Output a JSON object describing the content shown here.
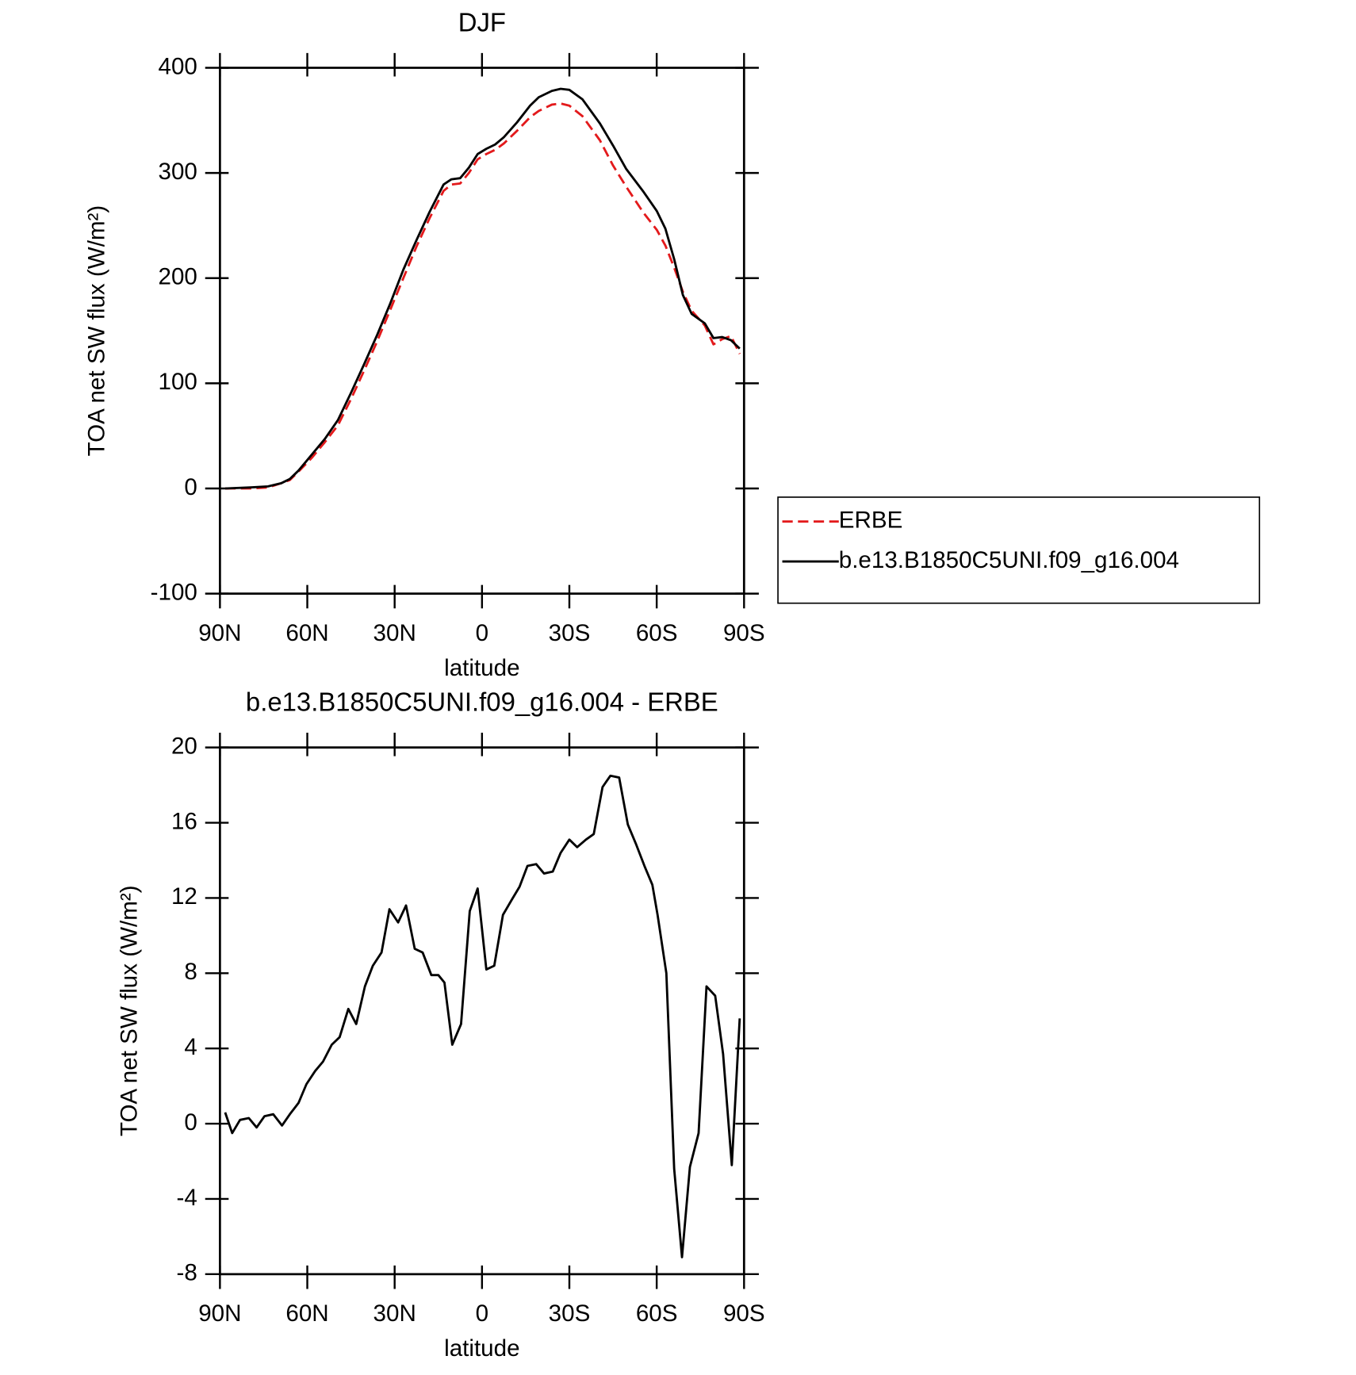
{
  "chart_data": [
    {
      "type": "line",
      "title": "DJF",
      "xlabel": "latitude",
      "ylabel": "TOA net SW flux (W/m²)",
      "x": [
        88.2,
        79.5,
        73.5,
        69,
        66,
        63,
        58.5,
        54,
        49.5,
        45,
        40.5,
        36,
        31.5,
        27,
        22.5,
        18,
        13.2,
        10.5,
        7.5,
        4.5,
        1.5,
        -1.5,
        -4.5,
        -7.5,
        -12,
        -16.5,
        -19.5,
        -24,
        -27,
        -30,
        -34.5,
        -40.5,
        -45,
        -49.5,
        -55.5,
        -60,
        -63,
        -66,
        -69,
        -72,
        -76.5,
        -79.5,
        -82.5,
        -85.5,
        -88.5
      ],
      "series": [
        {
          "name": "ERBE",
          "color": "#e31a1c",
          "dash": true,
          "values": [
            0,
            0,
            1,
            5,
            8,
            16,
            29,
            44,
            60,
            85,
            112,
            140,
            170,
            200,
            230,
            257,
            283,
            289,
            290,
            300,
            313,
            318,
            322,
            328,
            340,
            353,
            359,
            365,
            366,
            364,
            354,
            331,
            307,
            287,
            262,
            246,
            231,
            210,
            187,
            169,
            155,
            137,
            142,
            145,
            128
          ]
        },
        {
          "name": "b.e13.B1850C5UNI.f09_g16.004",
          "color": "#000000",
          "dash": false,
          "values": [
            0,
            1,
            2,
            5,
            9,
            17,
            32,
            47,
            65,
            91,
            118,
            146,
            176,
            208,
            236,
            263,
            289,
            294,
            295,
            305,
            318,
            323,
            327,
            334,
            348,
            364,
            372,
            378,
            380,
            379,
            370,
            347,
            326,
            304,
            282,
            264,
            247,
            218,
            184,
            166,
            157,
            143,
            144,
            141,
            133
          ]
        }
      ],
      "xlim": [
        90,
        -90
      ],
      "xticks": [
        {
          "value": 90,
          "label": "90N"
        },
        {
          "value": 60,
          "label": "60N"
        },
        {
          "value": 30,
          "label": "30N"
        },
        0,
        {
          "value": -30,
          "label": "30S"
        },
        {
          "value": -60,
          "label": "60S"
        },
        {
          "value": -90,
          "label": "90S"
        }
      ],
      "ylim": [
        -100,
        400
      ],
      "yticks": [
        -100,
        0,
        100,
        200,
        300,
        400
      ],
      "legend": "right"
    },
    {
      "type": "line",
      "title": "b.e13.B1850C5UNI.f09_g16.004 - ERBE",
      "xlabel": "latitude",
      "ylabel": "TOA net SW flux (W/m²)",
      "x": [
        88.2,
        85.8,
        83.1,
        80.1,
        77.4,
        74.7,
        71.7,
        68.7,
        66,
        63,
        60.3,
        57.3,
        54.6,
        51.6,
        48.9,
        45.9,
        43.2,
        40.2,
        37.5,
        34.5,
        31.8,
        28.8,
        26.1,
        23.1,
        20.4,
        17.4,
        15,
        12.9,
        10.2,
        7.2,
        4.2,
        1.5,
        -1.5,
        -4.2,
        -7.2,
        -10.2,
        -12.9,
        -15.6,
        -18.6,
        -21.3,
        -24.3,
        -27,
        -30,
        -32.7,
        -35.7,
        -38.4,
        -41.4,
        -44.1,
        -47.1,
        -50.1,
        -52.8,
        -55.8,
        -58.5,
        -60.3,
        -63.3,
        -66,
        -68.7,
        -71.4,
        -74.4,
        -77.1,
        -80.1,
        -82.8,
        -85.8,
        -88.5
      ],
      "series": [
        {
          "name": "b.e13.B1850C5UNI.f09_g16.004 - ERBE",
          "color": "#000000",
          "dash": false,
          "values": [
            0.6,
            -0.5,
            0.2,
            0.3,
            -0.2,
            0.4,
            0.5,
            -0.1,
            0.5,
            1.1,
            2.1,
            2.8,
            3.3,
            4.2,
            4.6,
            6.1,
            5.3,
            7.3,
            8.4,
            9.1,
            11.4,
            10.7,
            11.6,
            9.3,
            9.1,
            7.9,
            7.9,
            7.5,
            4.2,
            5.3,
            11.3,
            12.5,
            8.2,
            8.4,
            11.1,
            11.9,
            12.6,
            13.7,
            13.8,
            13.3,
            13.4,
            14.4,
            15.1,
            14.7,
            15.1,
            15.4,
            17.9,
            18.5,
            18.4,
            15.9,
            14.9,
            13.7,
            12.7,
            11.1,
            8.0,
            -2.4,
            -7.1,
            -2.3,
            -0.5,
            7.3,
            6.8,
            3.7,
            -2.2,
            5.6
          ]
        }
      ],
      "xlim": [
        90,
        -90
      ],
      "xticks": [
        {
          "value": 90,
          "label": "90N"
        },
        {
          "value": 60,
          "label": "60N"
        },
        {
          "value": 30,
          "label": "30N"
        },
        0,
        {
          "value": -30,
          "label": "30S"
        },
        {
          "value": -60,
          "label": "60S"
        },
        {
          "value": -90,
          "label": "90S"
        }
      ],
      "ylim": [
        -8,
        20
      ],
      "yticks": [
        -8,
        -4,
        0,
        4,
        8,
        12,
        16,
        20
      ]
    }
  ]
}
